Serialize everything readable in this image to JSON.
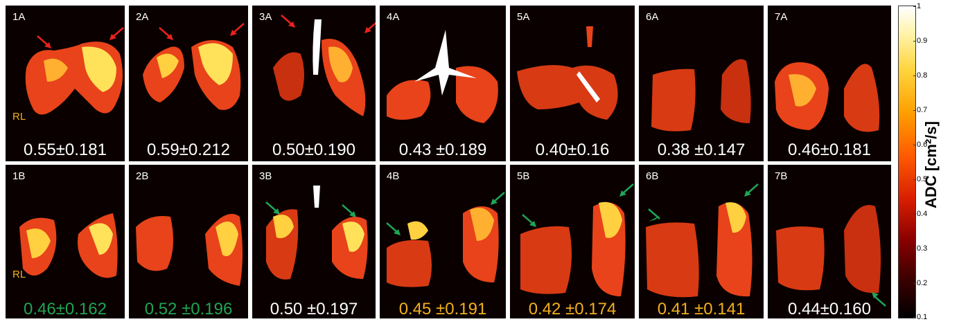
{
  "colors": {
    "background": "#0b0000",
    "value_default": "#ffffff",
    "value_green": "#1ea556",
    "value_orange": "#f2b01e",
    "arrow_red": "#e8231c",
    "arrow_green": "#1ea556",
    "rl_label": "#f2b01e"
  },
  "rl_label": "RL",
  "panels_top": [
    {
      "label": "1A",
      "value": "0.55±0.181",
      "color": "value_default"
    },
    {
      "label": "2A",
      "value": "0.59±0.212",
      "color": "value_default"
    },
    {
      "label": "3A",
      "value": "0.50±0.190",
      "color": "value_default"
    },
    {
      "label": "4A",
      "value": "0.43 ±0.189",
      "color": "value_default"
    },
    {
      "label": "5A",
      "value": "0.40±0.16",
      "color": "value_default"
    },
    {
      "label": "6A",
      "value": "0.38 ±0.147",
      "color": "value_default"
    },
    {
      "label": "7A",
      "value": "0.46±0.181",
      "color": "value_default"
    }
  ],
  "panels_bottom": [
    {
      "label": "1B",
      "value": "0.46±0.162",
      "color": "value_green"
    },
    {
      "label": "2B",
      "value": "0.52 ±0.196",
      "color": "value_green"
    },
    {
      "label": "3B",
      "value": "0.50 ±0.197",
      "color": "value_default"
    },
    {
      "label": "4B",
      "value": "0.45 ±0.191",
      "color": "value_orange"
    },
    {
      "label": "5B",
      "value": "0.42 ±0.174",
      "color": "value_orange"
    },
    {
      "label": "6B",
      "value": "0.41 ±0.141",
      "color": "value_orange"
    },
    {
      "label": "7B",
      "value": "0.44±0.160",
      "color": "value_default"
    }
  ],
  "colorbar": {
    "title": "ADC [cm²/s]",
    "ticks": [
      "1",
      "0.9",
      "0.8",
      "0.7",
      "0.6",
      "0.5",
      "0.4",
      "0.3",
      "0.2",
      "0.1"
    ],
    "range": [
      0.1,
      1
    ]
  }
}
